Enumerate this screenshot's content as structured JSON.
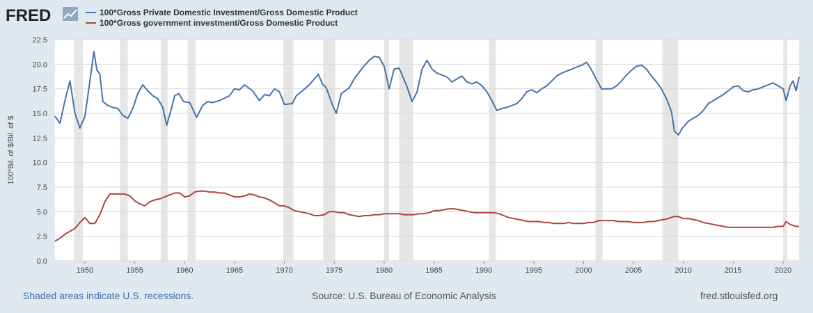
{
  "logo": {
    "text": "FRED"
  },
  "colors": {
    "background": "#e1e9f0",
    "plot_background": "#ffffff",
    "recession": "#e6e6e6",
    "grid": "#d9d9d9",
    "series1": "#4572a7",
    "series2": "#aa4643",
    "link": "#3f6ea7"
  },
  "footer": {
    "note": "Shaded areas indicate U.S. recessions.",
    "source": "Source: U.S. Bureau of Economic Analysis",
    "site": "fred.stlouisfed.org"
  },
  "chart_data": {
    "type": "line",
    "title": "",
    "xlabel": "",
    "ylabel": "100*Bil. of $/Bil. of $",
    "xlim": [
      1947.0,
      2021.6
    ],
    "ylim": [
      0,
      22.5
    ],
    "x_ticks": [
      "1950",
      "1955",
      "1960",
      "1965",
      "1970",
      "1975",
      "1980",
      "1985",
      "1990",
      "1995",
      "2000",
      "2005",
      "2010",
      "2015",
      "2020"
    ],
    "y_ticks": [
      "0.0",
      "2.5",
      "5.0",
      "7.5",
      "10.0",
      "12.5",
      "15.0",
      "17.5",
      "20.0",
      "22.5"
    ],
    "grid": "horizontal",
    "legend": "top-left",
    "recessions": [
      [
        1948.9,
        1949.8
      ],
      [
        1953.5,
        1954.3
      ],
      [
        1957.6,
        1958.3
      ],
      [
        1960.3,
        1961.1
      ],
      [
        1969.9,
        1970.9
      ],
      [
        1973.9,
        1975.1
      ],
      [
        1980.0,
        1980.5
      ],
      [
        1981.5,
        1982.9
      ],
      [
        1990.5,
        1991.2
      ],
      [
        2001.2,
        2001.9
      ],
      [
        2007.9,
        2009.5
      ],
      [
        2020.0,
        2020.4
      ]
    ],
    "series": [
      {
        "name": "100*Gross Private Domestic Investment/Gross Domestic Product",
        "color": "#4572a7",
        "x": [
          1947.0,
          1947.5,
          1948.0,
          1948.5,
          1949.0,
          1949.5,
          1950.0,
          1950.5,
          1950.9,
          1951.2,
          1951.5,
          1951.8,
          1952.3,
          1952.8,
          1953.3,
          1953.8,
          1954.3,
          1954.8,
          1955.3,
          1955.8,
          1956.3,
          1956.8,
          1957.3,
          1957.8,
          1958.2,
          1958.6,
          1959.0,
          1959.4,
          1959.9,
          1960.5,
          1961.2,
          1961.8,
          1962.3,
          1962.8,
          1963.5,
          1964.5,
          1965.0,
          1965.5,
          1966.0,
          1966.8,
          1967.5,
          1968.0,
          1968.5,
          1969.0,
          1969.5,
          1970.0,
          1970.8,
          1971.2,
          1971.8,
          1972.5,
          1973.0,
          1973.4,
          1973.8,
          1974.2,
          1974.8,
          1975.2,
          1975.7,
          1976.5,
          1977.0,
          1977.8,
          1978.5,
          1979.0,
          1979.5,
          1980.0,
          1980.5,
          1981.0,
          1981.5,
          1981.8,
          1982.3,
          1982.8,
          1983.3,
          1983.8,
          1984.3,
          1984.8,
          1985.3,
          1985.8,
          1986.3,
          1986.8,
          1987.3,
          1987.8,
          1988.3,
          1988.8,
          1989.3,
          1989.8,
          1990.3,
          1990.8,
          1991.3,
          1991.8,
          1992.3,
          1992.8,
          1993.3,
          1993.8,
          1994.3,
          1994.8,
          1995.3,
          1995.8,
          1996.3,
          1996.8,
          1997.3,
          1997.8,
          1998.3,
          1998.8,
          1999.3,
          1999.8,
          2000.3,
          2000.8,
          2001.3,
          2001.8,
          2002.3,
          2002.8,
          2003.3,
          2003.8,
          2004.3,
          2004.8,
          2005.3,
          2005.8,
          2006.3,
          2006.8,
          2007.3,
          2007.8,
          2008.3,
          2008.8,
          2009.1,
          2009.5,
          2009.9,
          2010.5,
          2011.0,
          2011.5,
          2012.0,
          2012.5,
          2013.0,
          2013.5,
          2014.0,
          2014.5,
          2015.0,
          2015.5,
          2016.0,
          2016.5,
          2017.0,
          2017.5,
          2018.0,
          2018.5,
          2019.0,
          2019.5,
          2020.0,
          2020.3,
          2020.7,
          2021.0,
          2021.3,
          2021.6
        ],
        "values": [
          14.7,
          14.0,
          16.3,
          18.3,
          15.0,
          13.5,
          14.7,
          18.3,
          21.3,
          19.4,
          19.0,
          16.2,
          15.8,
          15.6,
          15.5,
          14.8,
          14.5,
          15.5,
          17.0,
          17.9,
          17.3,
          16.8,
          16.5,
          15.6,
          13.8,
          15.2,
          16.8,
          17.0,
          16.2,
          16.1,
          14.6,
          15.8,
          16.2,
          16.1,
          16.3,
          16.8,
          17.5,
          17.4,
          17.9,
          17.3,
          16.3,
          16.9,
          16.8,
          17.5,
          17.2,
          15.9,
          16.0,
          16.8,
          17.3,
          17.9,
          18.5,
          19.0,
          18.0,
          17.6,
          15.9,
          15.0,
          17.0,
          17.6,
          18.5,
          19.6,
          20.4,
          20.8,
          20.7,
          19.8,
          17.5,
          19.5,
          19.6,
          18.9,
          17.7,
          16.2,
          17.2,
          19.5,
          20.4,
          19.5,
          19.1,
          18.9,
          18.7,
          18.2,
          18.5,
          18.8,
          18.2,
          18.0,
          18.2,
          17.8,
          17.2,
          16.3,
          15.3,
          15.5,
          15.6,
          15.8,
          16.0,
          16.5,
          17.2,
          17.4,
          17.1,
          17.5,
          17.8,
          18.3,
          18.8,
          19.1,
          19.3,
          19.5,
          19.7,
          19.9,
          20.2,
          19.4,
          18.4,
          17.5,
          17.5,
          17.5,
          17.8,
          18.3,
          18.9,
          19.4,
          19.8,
          19.9,
          19.5,
          18.8,
          18.2,
          17.5,
          16.5,
          15.2,
          13.2,
          12.8,
          13.5,
          14.2,
          14.5,
          14.8,
          15.3,
          16.0,
          16.3,
          16.6,
          16.9,
          17.3,
          17.7,
          17.8,
          17.3,
          17.2,
          17.4,
          17.5,
          17.7,
          17.9,
          18.1,
          17.8,
          17.5,
          16.3,
          17.8,
          18.3,
          17.3,
          18.7
        ]
      },
      {
        "name": "100*Gross government investment/Gross Domestic Product",
        "color": "#aa4643",
        "x": [
          1947.0,
          1947.5,
          1948.0,
          1948.5,
          1949.0,
          1949.5,
          1950.0,
          1950.5,
          1951.0,
          1951.5,
          1952.0,
          1952.5,
          1953.0,
          1953.5,
          1954.0,
          1954.5,
          1955.0,
          1955.5,
          1956.0,
          1956.5,
          1957.0,
          1957.5,
          1958.0,
          1958.5,
          1959.0,
          1959.5,
          1960.0,
          1960.5,
          1961.0,
          1961.5,
          1962.0,
          1962.5,
          1963.0,
          1963.5,
          1964.0,
          1964.5,
          1965.0,
          1965.5,
          1966.0,
          1966.5,
          1967.0,
          1967.5,
          1968.0,
          1968.5,
          1969.0,
          1969.5,
          1970.0,
          1970.5,
          1971.0,
          1971.5,
          1972.0,
          1972.5,
          1973.0,
          1973.5,
          1974.0,
          1974.5,
          1975.0,
          1975.5,
          1976.0,
          1976.5,
          1977.0,
          1977.5,
          1978.0,
          1978.5,
          1979.0,
          1979.5,
          1980.0,
          1980.5,
          1981.0,
          1981.5,
          1982.0,
          1982.5,
          1983.0,
          1983.5,
          1984.0,
          1984.5,
          1985.0,
          1985.5,
          1986.0,
          1986.5,
          1987.0,
          1987.5,
          1988.0,
          1988.5,
          1989.0,
          1989.5,
          1990.0,
          1990.5,
          1991.0,
          1991.5,
          1992.0,
          1992.5,
          1993.0,
          1993.5,
          1994.0,
          1994.5,
          1995.0,
          1995.5,
          1996.0,
          1996.5,
          1997.0,
          1997.5,
          1998.0,
          1998.5,
          1999.0,
          1999.5,
          2000.0,
          2000.5,
          2001.0,
          2001.5,
          2002.0,
          2002.5,
          2003.0,
          2003.5,
          2004.0,
          2004.5,
          2005.0,
          2005.5,
          2006.0,
          2006.5,
          2007.0,
          2007.5,
          2008.0,
          2008.5,
          2009.0,
          2009.5,
          2010.0,
          2010.5,
          2011.0,
          2011.5,
          2012.0,
          2012.5,
          2013.0,
          2013.5,
          2014.0,
          2014.5,
          2015.0,
          2015.5,
          2016.0,
          2016.5,
          2017.0,
          2017.5,
          2018.0,
          2018.5,
          2019.0,
          2019.5,
          2020.0,
          2020.3,
          2020.7,
          2021.0,
          2021.3,
          2021.6
        ],
        "values": [
          2.0,
          2.3,
          2.7,
          3.0,
          3.3,
          3.9,
          4.4,
          3.8,
          3.8,
          4.7,
          6.0,
          6.8,
          6.8,
          6.8,
          6.8,
          6.6,
          6.1,
          5.8,
          5.6,
          6.0,
          6.2,
          6.3,
          6.5,
          6.7,
          6.9,
          6.9,
          6.5,
          6.6,
          7.0,
          7.1,
          7.1,
          7.0,
          7.0,
          6.9,
          6.9,
          6.7,
          6.5,
          6.5,
          6.6,
          6.8,
          6.7,
          6.5,
          6.4,
          6.2,
          5.9,
          5.6,
          5.6,
          5.4,
          5.1,
          5.0,
          4.9,
          4.8,
          4.6,
          4.6,
          4.7,
          5.0,
          5.0,
          4.9,
          4.9,
          4.7,
          4.6,
          4.5,
          4.6,
          4.6,
          4.7,
          4.7,
          4.8,
          4.8,
          4.8,
          4.8,
          4.7,
          4.7,
          4.7,
          4.8,
          4.8,
          4.9,
          5.1,
          5.1,
          5.2,
          5.3,
          5.3,
          5.2,
          5.1,
          5.0,
          4.9,
          4.9,
          4.9,
          4.9,
          4.9,
          4.8,
          4.6,
          4.4,
          4.3,
          4.2,
          4.1,
          4.0,
          4.0,
          4.0,
          3.9,
          3.9,
          3.8,
          3.8,
          3.8,
          3.9,
          3.8,
          3.8,
          3.8,
          3.9,
          3.9,
          4.1,
          4.1,
          4.1,
          4.1,
          4.0,
          4.0,
          4.0,
          3.9,
          3.9,
          3.9,
          4.0,
          4.0,
          4.1,
          4.2,
          4.3,
          4.5,
          4.5,
          4.3,
          4.3,
          4.2,
          4.1,
          3.9,
          3.8,
          3.7,
          3.6,
          3.5,
          3.4,
          3.4,
          3.4,
          3.4,
          3.4,
          3.4,
          3.4,
          3.4,
          3.4,
          3.4,
          3.5,
          3.5,
          4.0,
          3.7,
          3.6,
          3.5,
          3.5
        ]
      }
    ]
  }
}
